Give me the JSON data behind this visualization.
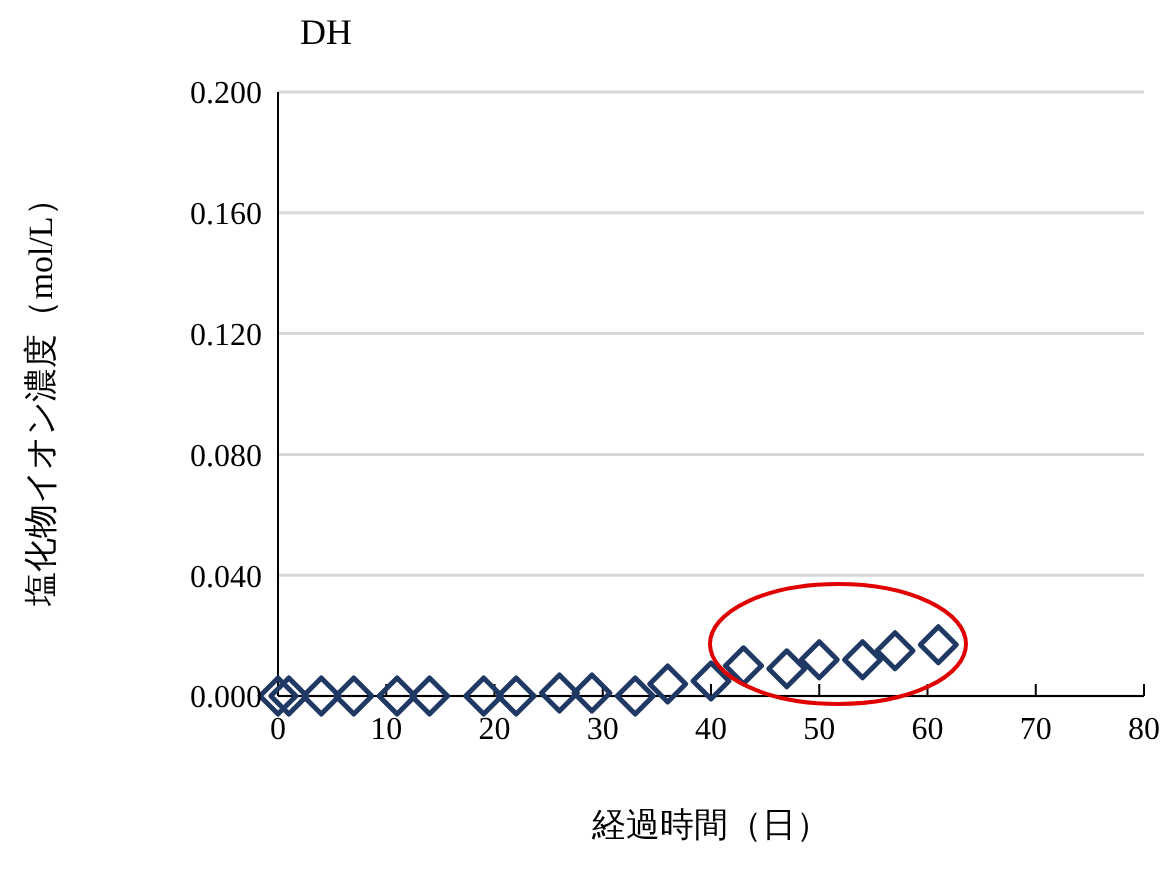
{
  "chart_data": {
    "type": "scatter",
    "title": "DH",
    "xlabel": "経過時間（日）",
    "ylabel": "塩化物イオン濃度（mol/L）",
    "x": [
      0,
      1,
      4,
      7,
      11,
      14,
      19,
      22,
      26,
      29,
      33,
      36,
      40,
      43,
      47,
      50,
      54,
      57,
      61
    ],
    "series": [
      {
        "color": "#203864",
        "values": [
          0,
          0,
          0,
          0,
          0,
          0,
          0,
          0,
          0.001,
          0.001,
          0,
          0.004,
          0.005,
          0.01,
          0.009,
          0.012,
          0.012,
          0.015,
          0.017
        ]
      }
    ],
    "marker": "diamond",
    "grid": "y",
    "legend": false,
    "xlim": [
      0,
      80
    ],
    "xticks": [
      0,
      10,
      20,
      30,
      40,
      50,
      60,
      70,
      80
    ],
    "ylim": [
      0,
      0.2
    ],
    "yticks": [
      {
        "value": 0,
        "label": "0.000"
      },
      {
        "value": 0.04,
        "label": "0.040"
      },
      {
        "value": 0.08,
        "label": "0.080"
      },
      {
        "value": 0.12,
        "label": "0.120"
      },
      {
        "value": 0.16,
        "label": "0.160"
      },
      {
        "value": 0.2,
        "label": "0.200"
      }
    ]
  }
}
